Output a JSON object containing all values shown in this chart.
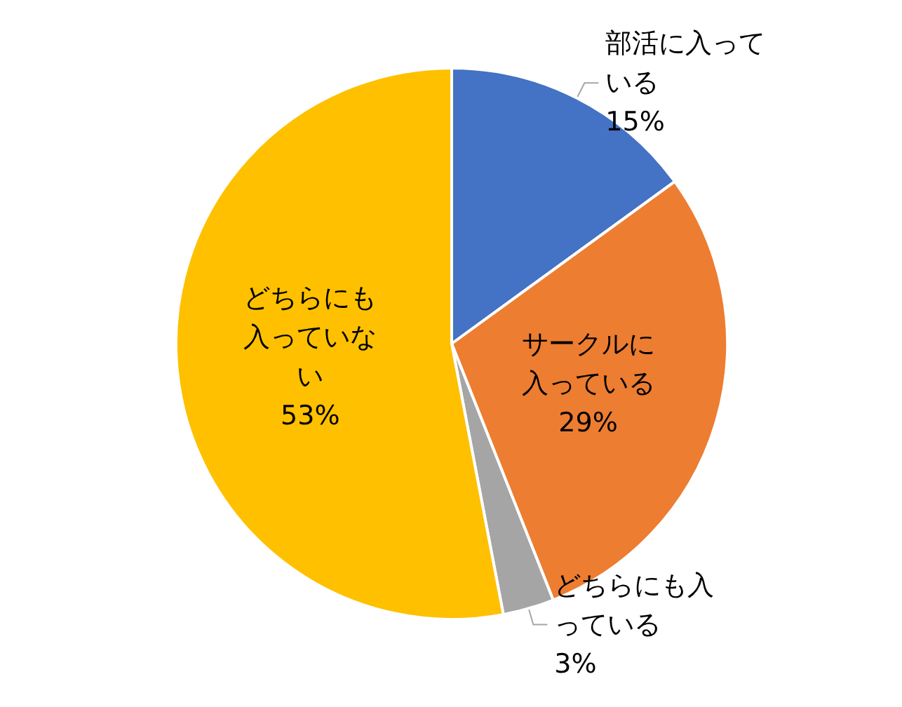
{
  "chart_data": {
    "type": "pie",
    "categories": [
      "部活に入っている",
      "サークルに入っている",
      "どちらにも入っている",
      "どちらにも入っていない"
    ],
    "values": [
      15,
      29,
      3,
      53
    ],
    "value_labels": [
      "15%",
      "29%",
      "3%",
      "53%"
    ],
    "colors": [
      "#4472c4",
      "#ed7d31",
      "#a5a5a5",
      "#ffc000"
    ],
    "legend": false
  }
}
